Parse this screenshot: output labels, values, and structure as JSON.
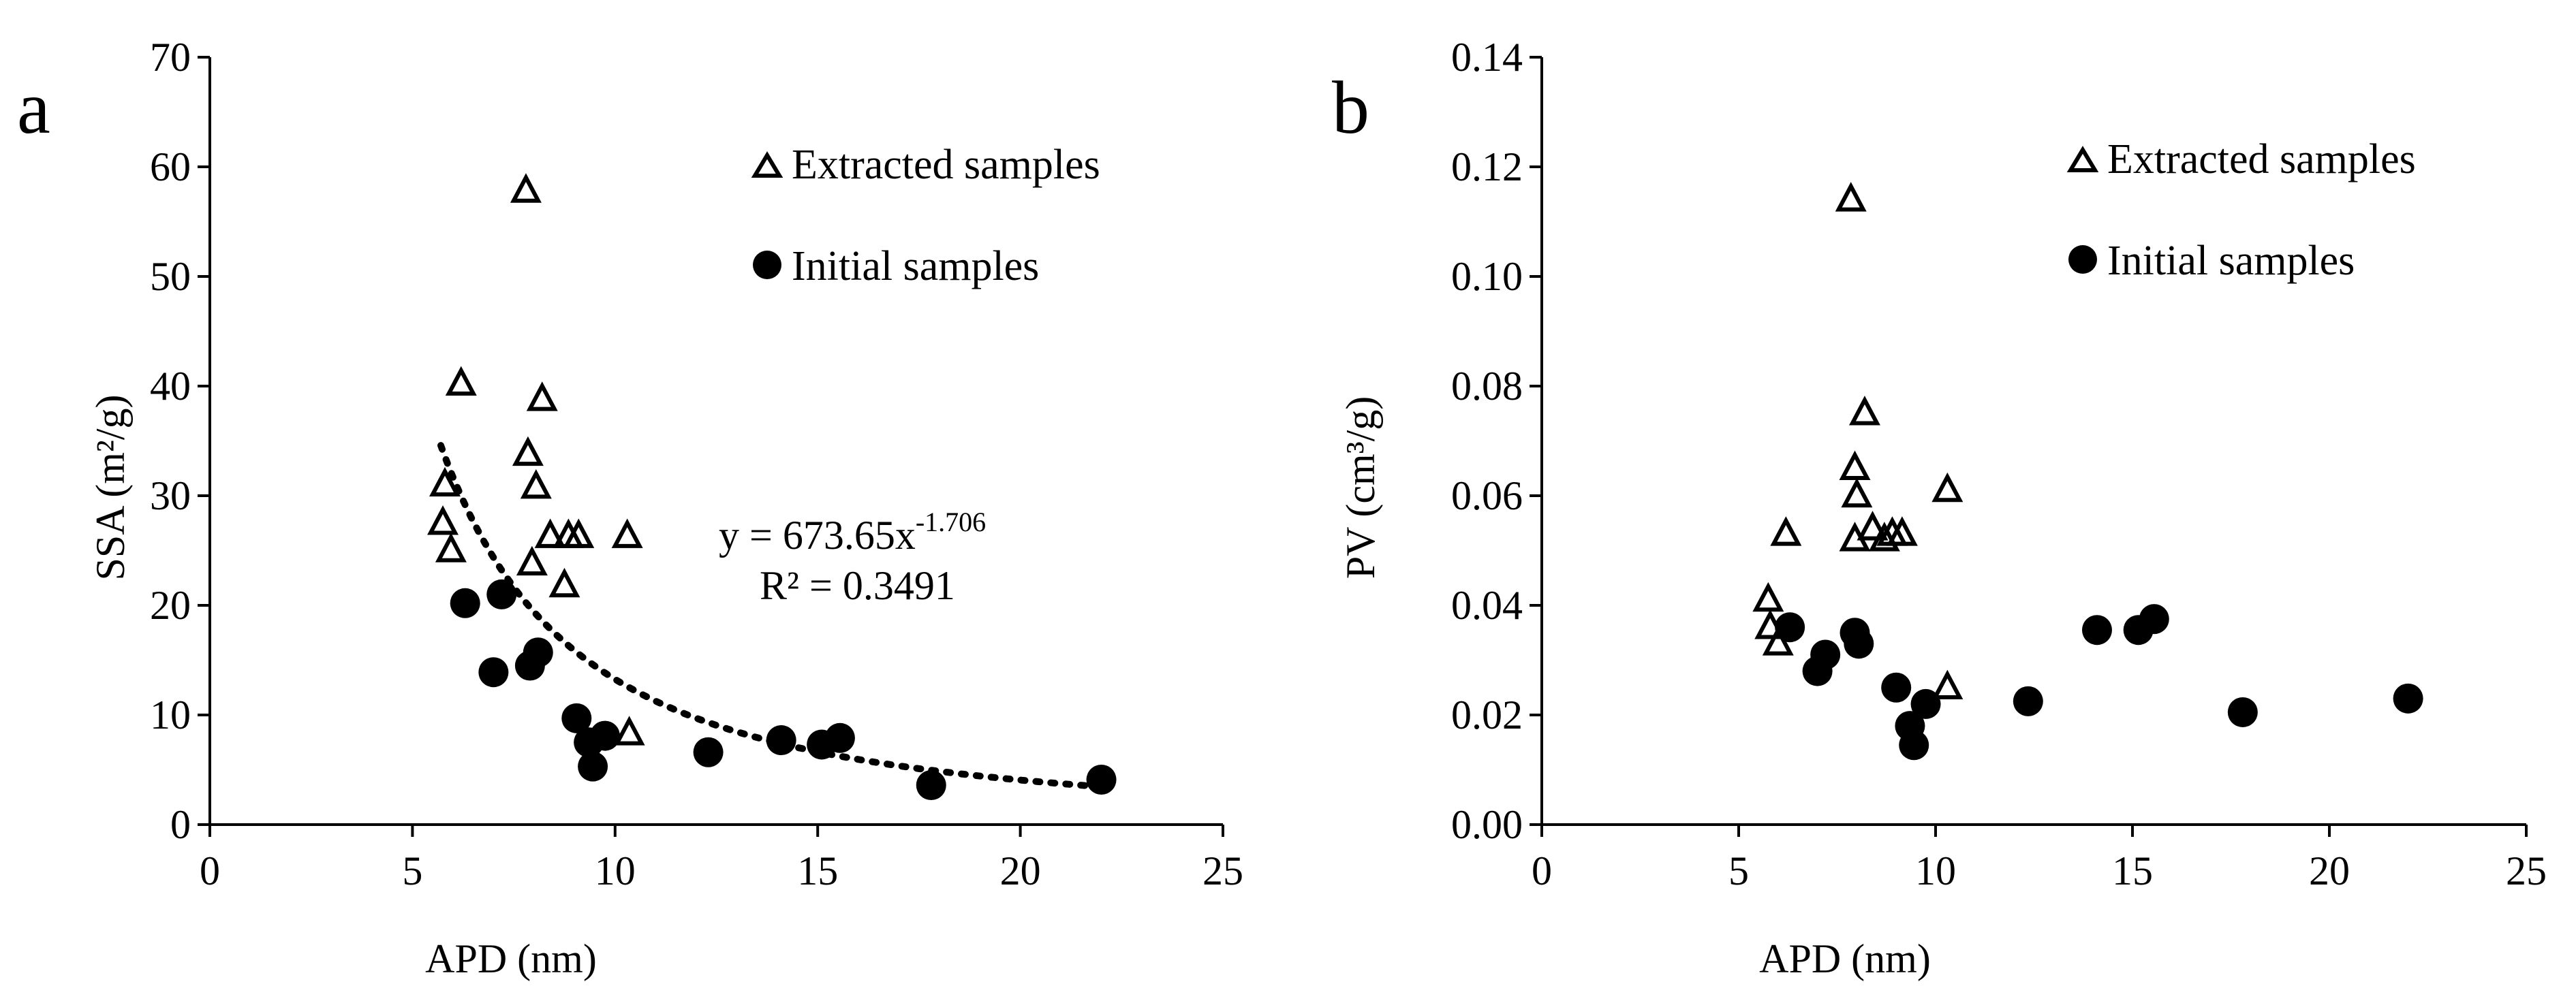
{
  "chart_data": [
    {
      "type": "scatter",
      "panel_label": "a",
      "xlabel": "APD (nm)",
      "ylabel": "SSA (m²/g)",
      "xlim": [
        0,
        25
      ],
      "ylim": [
        0,
        70
      ],
      "xticks": [
        "0",
        "5",
        "10",
        "15",
        "20",
        "25"
      ],
      "yticks": [
        "0",
        "10",
        "20",
        "30",
        "40",
        "50",
        "60",
        "70"
      ],
      "legend": {
        "position": "top-right",
        "entries": [
          "Extracted samples",
          "Initial samples"
        ]
      },
      "series": [
        {
          "name": "Extracted samples",
          "marker": "open-triangle",
          "x": [
            5.8,
            5.75,
            5.95,
            6.2,
            7.8,
            7.85,
            8.05,
            8.2,
            7.95,
            8.4,
            8.85,
            9.1,
            8.75,
            10.3,
            10.35
          ],
          "y": [
            31.0,
            27.5,
            25.0,
            40.2,
            57.8,
            33.8,
            30.8,
            38.8,
            23.8,
            26.3,
            26.3,
            26.3,
            21.8,
            26.3,
            8.3
          ]
        },
        {
          "name": "Initial samples",
          "marker": "filled-circle",
          "x": [
            6.3,
            7.0,
            7.2,
            7.9,
            8.1,
            9.05,
            9.35,
            9.45,
            9.75,
            12.3,
            14.1,
            15.1,
            15.55,
            17.8,
            22.0
          ],
          "y": [
            20.2,
            13.9,
            21.0,
            14.5,
            15.7,
            9.7,
            7.5,
            5.3,
            8.1,
            6.6,
            7.7,
            7.3,
            7.9,
            3.6,
            4.1
          ]
        }
      ],
      "trendline": {
        "type": "power",
        "coefficient": 673.65,
        "exponent": -1.706,
        "x_range": [
          5.7,
          22.0
        ],
        "equation_base": "y = 673.65x",
        "equation_exp": "-1.706",
        "r2_label": "R² = 0.3491"
      }
    },
    {
      "type": "scatter",
      "panel_label": "b",
      "xlabel": "APD (nm)",
      "ylabel": "PV (cm³/g)",
      "xlim": [
        0,
        25
      ],
      "ylim": [
        0,
        0.14
      ],
      "xticks": [
        "0",
        "5",
        "10",
        "15",
        "20",
        "25"
      ],
      "yticks": [
        "0.00",
        "0.02",
        "0.04",
        "0.06",
        "0.08",
        "0.10",
        "0.12",
        "0.14"
      ],
      "legend": {
        "position": "top-right",
        "entries": [
          "Extracted samples",
          "Initial samples"
        ]
      },
      "series": [
        {
          "name": "Extracted samples",
          "marker": "open-triangle",
          "x": [
            5.75,
            5.8,
            6.0,
            6.2,
            7.85,
            7.95,
            8.0,
            8.2,
            8.4,
            8.7,
            8.9,
            9.15,
            7.95,
            10.3,
            10.3
          ],
          "y": [
            0.041,
            0.036,
            0.033,
            0.053,
            0.114,
            0.065,
            0.06,
            0.075,
            0.054,
            0.052,
            0.053,
            0.053,
            0.052,
            0.061,
            0.025
          ]
        },
        {
          "name": "Initial samples",
          "marker": "filled-circle",
          "x": [
            6.3,
            7.0,
            7.2,
            7.95,
            8.05,
            9.0,
            9.35,
            9.45,
            9.75,
            12.35,
            14.1,
            15.15,
            15.55,
            17.8,
            22.0
          ],
          "y": [
            0.036,
            0.028,
            0.031,
            0.035,
            0.033,
            0.025,
            0.018,
            0.0145,
            0.022,
            0.0225,
            0.0355,
            0.0355,
            0.0375,
            0.0205,
            0.023
          ]
        }
      ]
    }
  ]
}
